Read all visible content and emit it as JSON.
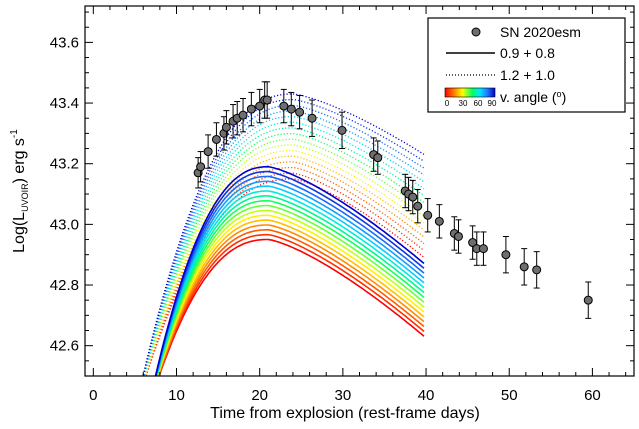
{
  "chart_data": {
    "type": "line",
    "title": "",
    "xlabel": "Time from explosion (rest-frame days)",
    "ylabel": {
      "prefix": "Log(L",
      "sub": "UVOIR",
      "suffix": ") erg s",
      "sup": "-1"
    },
    "xlim": [
      -1,
      65
    ],
    "ylim": [
      42.5,
      43.72
    ],
    "xticks": [
      0,
      10,
      20,
      30,
      40,
      50,
      60
    ],
    "yticks": [
      42.6,
      42.8,
      43.0,
      43.2,
      43.4,
      43.6
    ],
    "grid": false,
    "legend_position": "top-right",
    "legend": {
      "observed": "SN 2020esm",
      "solid_model": "0.9 + 0.8",
      "dotted_model": "1.2 + 1.0",
      "colorbar_label": "v. angle (",
      "colorbar_label_sup": "o",
      "colorbar_label_end": ")",
      "colorbar_ticks": [
        "0",
        "30",
        "60",
        "90"
      ]
    },
    "observed": {
      "name": "SN 2020esm",
      "color": "#6e6e6e",
      "points": [
        {
          "x": 12.6,
          "y": 43.17,
          "err": 0.05
        },
        {
          "x": 12.9,
          "y": 43.19,
          "err": 0.05
        },
        {
          "x": 13.8,
          "y": 43.24,
          "err": 0.055
        },
        {
          "x": 14.8,
          "y": 43.28,
          "err": 0.055
        },
        {
          "x": 15.7,
          "y": 43.3,
          "err": 0.055
        },
        {
          "x": 16.0,
          "y": 43.32,
          "err": 0.055
        },
        {
          "x": 16.8,
          "y": 43.34,
          "err": 0.055
        },
        {
          "x": 17.3,
          "y": 43.35,
          "err": 0.055
        },
        {
          "x": 18.0,
          "y": 43.36,
          "err": 0.055
        },
        {
          "x": 19.0,
          "y": 43.38,
          "err": 0.055
        },
        {
          "x": 20.0,
          "y": 43.39,
          "err": 0.055
        },
        {
          "x": 20.6,
          "y": 43.41,
          "err": 0.06
        },
        {
          "x": 20.9,
          "y": 43.41,
          "err": 0.06
        },
        {
          "x": 22.9,
          "y": 43.39,
          "err": 0.055
        },
        {
          "x": 23.8,
          "y": 43.38,
          "err": 0.055
        },
        {
          "x": 24.8,
          "y": 43.37,
          "err": 0.055
        },
        {
          "x": 26.3,
          "y": 43.35,
          "err": 0.06
        },
        {
          "x": 29.9,
          "y": 43.31,
          "err": 0.06
        },
        {
          "x": 33.7,
          "y": 43.23,
          "err": 0.055
        },
        {
          "x": 34.2,
          "y": 43.22,
          "err": 0.055
        },
        {
          "x": 37.5,
          "y": 43.11,
          "err": 0.055
        },
        {
          "x": 37.9,
          "y": 43.1,
          "err": 0.055
        },
        {
          "x": 38.4,
          "y": 43.09,
          "err": 0.055
        },
        {
          "x": 39.0,
          "y": 43.06,
          "err": 0.055
        },
        {
          "x": 40.2,
          "y": 43.03,
          "err": 0.055
        },
        {
          "x": 41.6,
          "y": 43.01,
          "err": 0.055
        },
        {
          "x": 43.4,
          "y": 42.97,
          "err": 0.055
        },
        {
          "x": 43.9,
          "y": 42.96,
          "err": 0.055
        },
        {
          "x": 45.6,
          "y": 42.94,
          "err": 0.055
        },
        {
          "x": 46.1,
          "y": 42.92,
          "err": 0.055
        },
        {
          "x": 46.9,
          "y": 42.92,
          "err": 0.055
        },
        {
          "x": 49.6,
          "y": 42.9,
          "err": 0.06
        },
        {
          "x": 51.8,
          "y": 42.86,
          "err": 0.06
        },
        {
          "x": 53.3,
          "y": 42.85,
          "err": 0.06
        },
        {
          "x": 59.5,
          "y": 42.75,
          "err": 0.06
        }
      ]
    },
    "models": {
      "angles_deg": [
        0,
        6,
        12,
        18,
        24,
        30,
        36,
        42,
        48,
        54,
        60,
        66,
        72,
        78,
        84,
        90
      ],
      "solid_model": {
        "name": "0.9 + 0.8",
        "style": "solid",
        "peak_x": 21,
        "x_start": 6.5,
        "x_end": 39.8,
        "peak_y_range": [
          42.95,
          43.19
        ],
        "end_y_range": [
          42.63,
          42.87
        ]
      },
      "dotted_model": {
        "name": "1.2 + 1.0",
        "style": "dotted",
        "peak_x": 24,
        "x_start": 5.0,
        "x_end": 39.8,
        "peak_y_range": [
          43.15,
          43.43
        ],
        "end_y_range": [
          42.89,
          43.23
        ]
      }
    }
  }
}
